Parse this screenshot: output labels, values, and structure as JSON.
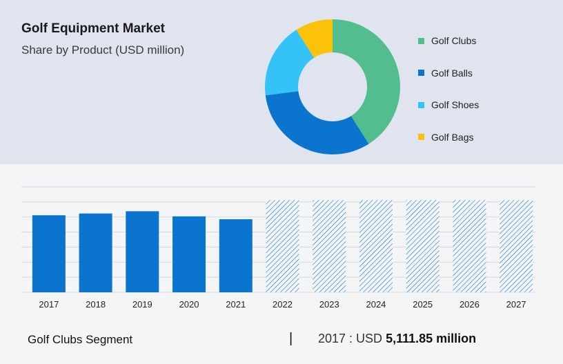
{
  "header": {
    "title": "Golf Equipment Market",
    "subtitle": "Share by Product (USD million)"
  },
  "footer": {
    "segment_label": "Golf Clubs Segment",
    "separator": "|",
    "year_prefix": "2017 : USD",
    "value_text": "5,111.85 million"
  },
  "colors": {
    "golf_clubs": "#52be90",
    "golf_balls": "#0a74cf",
    "golf_shoes": "#35c3f7",
    "golf_bags": "#fcc20a",
    "bar_fill": "#0a74cf",
    "hatch": "#0a74cf",
    "grid": "#d5d7db"
  },
  "chart_data": [
    {
      "type": "pie",
      "variant": "donut",
      "title": "",
      "labels": [
        "Golf Clubs",
        "Golf Balls",
        "Golf Shoes",
        "Golf Bags"
      ],
      "values": [
        41,
        32,
        18,
        9
      ],
      "legend_position": "right"
    },
    {
      "type": "bar",
      "title": "",
      "categories": [
        "2017",
        "2018",
        "2019",
        "2020",
        "2021",
        "2022",
        "2023",
        "2024",
        "2025",
        "2026",
        "2027"
      ],
      "values": [
        5111.85,
        5230,
        5380,
        5040,
        4850,
        6120,
        6120,
        6120,
        6120,
        6120,
        6120
      ],
      "forecast_from": "2022",
      "forecast_style": "hatched",
      "ylim": [
        0,
        7000
      ],
      "grid": true,
      "y_tick_labels": false
    }
  ]
}
